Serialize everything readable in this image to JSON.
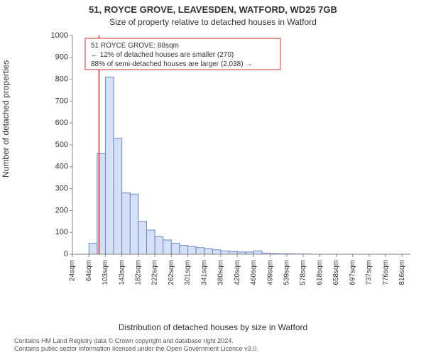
{
  "title_main": "51, ROYCE GROVE, LEAVESDEN, WATFORD, WD25 7GB",
  "title_sub": "Size of property relative to detached houses in Watford",
  "ylabel": "Number of detached properties",
  "xlabel": "Distribution of detached houses by size in Watford",
  "footer_line1": "Contains HM Land Registry data © Crown copyright and database right 2024.",
  "footer_line2": "Contains public sector information licensed under the Open Government Licence v3.0.",
  "chart": {
    "type": "histogram",
    "background_color": "#ffffff",
    "bar_fill": "#d6e0f5",
    "bar_stroke": "#6b86c9",
    "axis_color": "#888888",
    "ylim": [
      0,
      1000
    ],
    "ytick_step": 100,
    "yticks": [
      0,
      100,
      200,
      300,
      400,
      500,
      600,
      700,
      800,
      900,
      1000
    ],
    "xticks": [
      "24sqm",
      "64sqm",
      "103sqm",
      "143sqm",
      "182sqm",
      "222sqm",
      "262sqm",
      "301sqm",
      "341sqm",
      "380sqm",
      "420sqm",
      "460sqm",
      "499sqm",
      "539sqm",
      "578sqm",
      "618sqm",
      "658sqm",
      "697sqm",
      "737sqm",
      "776sqm",
      "816sqm"
    ],
    "xtick_every": 2,
    "bin_start": 24,
    "bin_width_sqm": 19.8,
    "bin_count": 41,
    "values": [
      0,
      0,
      50,
      460,
      810,
      530,
      280,
      275,
      150,
      110,
      80,
      65,
      50,
      40,
      35,
      30,
      25,
      20,
      15,
      12,
      10,
      10,
      15,
      4,
      3,
      2,
      2,
      1,
      1,
      0,
      0,
      0,
      0,
      0,
      0,
      0,
      0,
      0,
      0,
      0,
      0
    ],
    "marker_value_sqm": 88,
    "marker_color": "#d03030"
  },
  "annotation": {
    "line1": "51 ROYCE GROVE: 88sqm",
    "line2": "← 12% of detached houses are smaller (270)",
    "line3": "88% of semi-detached houses are larger (2,038) →",
    "box_stroke": "#d03030"
  }
}
